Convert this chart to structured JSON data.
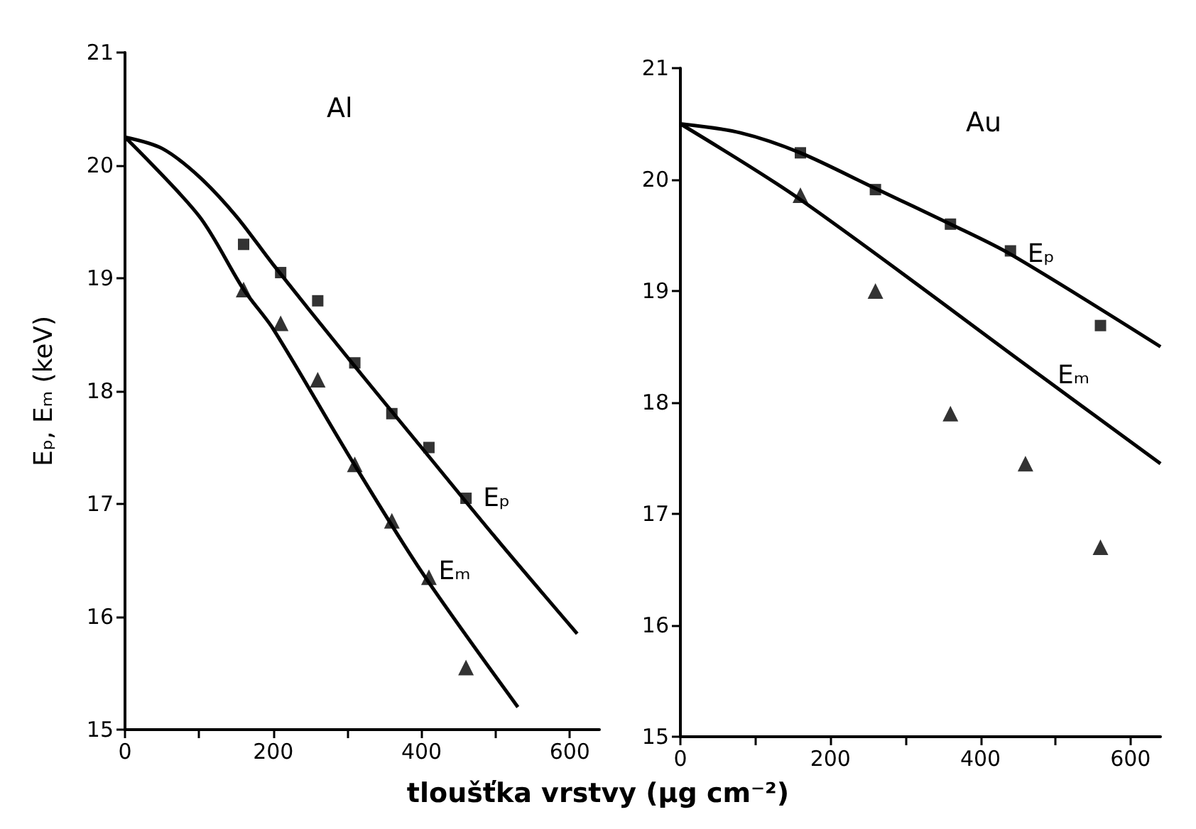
{
  "chart_data": [
    {
      "type": "scatter",
      "title": "Al",
      "ylabel": "Eₚ, Eₘ (keV)",
      "xlabel": "tloušťka vrstvy (μg cm⁻²)",
      "xlim": [
        0,
        640
      ],
      "xticks": [
        0,
        {
          "value": 100,
          "label": null
        },
        200,
        {
          "value": 300,
          "label": null
        },
        400,
        {
          "value": 500,
          "label": null
        },
        600
      ],
      "ylim": [
        15,
        21
      ],
      "yticks": [
        15,
        16,
        17,
        18,
        19,
        20,
        21
      ],
      "series": [
        {
          "marker": "square",
          "color": "#000000",
          "x": [
            160,
            210,
            260,
            310,
            360,
            410,
            460
          ],
          "values": [
            19.3,
            19.05,
            18.8,
            18.25,
            17.8,
            17.5,
            17.05
          ]
        },
        {
          "marker": "triangle",
          "color": "#000000",
          "x": [
            160,
            210,
            260,
            310,
            360,
            410,
            460
          ],
          "values": [
            18.9,
            18.6,
            18.1,
            17.35,
            16.85,
            16.35,
            15.55
          ]
        },
        {
          "type": "line",
          "marker": "none",
          "color": "#000000",
          "x": [
            0,
            50,
            100,
            150,
            200,
            300,
            400,
            500,
            610
          ],
          "values": [
            20.25,
            20.15,
            19.9,
            19.55,
            19.12,
            18.3,
            17.5,
            16.7,
            15.85
          ]
        },
        {
          "type": "line",
          "marker": "none",
          "color": "#000000",
          "x": [
            0,
            100,
            160,
            200,
            300,
            400,
            530
          ],
          "values": [
            20.25,
            19.55,
            18.9,
            18.55,
            17.45,
            16.4,
            15.2
          ]
        }
      ],
      "annotations": [
        {
          "text": "Eₚ",
          "x": 460,
          "y": 17.05
        },
        {
          "text": "Eₘ",
          "x": 400,
          "y": 16.4
        }
      ]
    },
    {
      "type": "scatter",
      "title": "Au",
      "xlim": [
        0,
        640
      ],
      "xticks": [
        0,
        {
          "value": 100,
          "label": null
        },
        200,
        {
          "value": 300,
          "label": null
        },
        400,
        {
          "value": 500,
          "label": null
        },
        600
      ],
      "ylim": [
        15,
        21
      ],
      "yticks": [
        15,
        16,
        17,
        18,
        19,
        20,
        21
      ],
      "series": [
        {
          "marker": "square",
          "color": "#000000",
          "x": [
            160,
            260,
            360,
            440,
            560
          ],
          "values": [
            20.24,
            19.91,
            19.6,
            19.36,
            18.69
          ]
        },
        {
          "marker": "triangle",
          "color": "#000000",
          "x": [
            160,
            260,
            360,
            460,
            560
          ],
          "values": [
            19.86,
            19.0,
            17.9,
            17.45,
            16.7
          ]
        },
        {
          "type": "line",
          "marker": "none",
          "color": "#000000",
          "x": [
            0,
            80,
            160,
            260,
            360,
            440,
            640
          ],
          "values": [
            20.5,
            20.42,
            20.24,
            19.92,
            19.6,
            19.33,
            18.5
          ]
        },
        {
          "type": "line",
          "marker": "none",
          "color": "#000000",
          "x": [
            0,
            160,
            480,
            640
          ],
          "values": [
            20.5,
            19.82,
            18.24,
            17.45
          ]
        }
      ],
      "annotations": [
        {
          "text": "Eₚ",
          "x": 440,
          "y": 19.33
        },
        {
          "text": "Eₘ",
          "x": 480,
          "y": 18.24
        }
      ]
    }
  ]
}
